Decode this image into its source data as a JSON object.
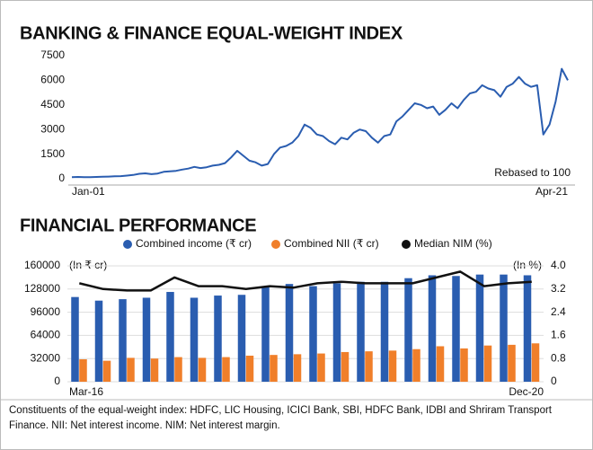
{
  "chart_data": [
    {
      "type": "line",
      "title": "BANKING & FINANCE EQUAL-WEIGHT INDEX",
      "annotation": "Rebased to 100",
      "color": "#2a5db0",
      "categories": [
        "Jan-01",
        null,
        null,
        null,
        null,
        null,
        null,
        null,
        null,
        null,
        null,
        null,
        null,
        null,
        null,
        null,
        null,
        null,
        null,
        null,
        null,
        null,
        null,
        null,
        null,
        null,
        null,
        null,
        null,
        null,
        null,
        null,
        null,
        null,
        null,
        null,
        null,
        null,
        null,
        null,
        null,
        null,
        null,
        null,
        null,
        null,
        null,
        null,
        null,
        null,
        null,
        null,
        null,
        null,
        null,
        null,
        null,
        null,
        null,
        null,
        null,
        null,
        null,
        null,
        null,
        null,
        null,
        null,
        null,
        null,
        null,
        null,
        null,
        null,
        null,
        null,
        null,
        null,
        null,
        null,
        null,
        "Apr-21"
      ],
      "values": [
        100,
        110,
        95,
        100,
        110,
        120,
        130,
        150,
        160,
        190,
        230,
        300,
        330,
        280,
        320,
        420,
        450,
        480,
        560,
        620,
        720,
        650,
        700,
        800,
        850,
        950,
        1300,
        1700,
        1400,
        1100,
        1000,
        800,
        900,
        1500,
        1900,
        2000,
        2200,
        2600,
        3300,
        3100,
        2700,
        2600,
        2300,
        2100,
        2500,
        2400,
        2800,
        3000,
        2900,
        2500,
        2200,
        2600,
        2700,
        3500,
        3800,
        4200,
        4600,
        4500,
        4300,
        4400,
        3900,
        4200,
        4600,
        4300,
        4800,
        5200,
        5300,
        5700,
        5500,
        5400,
        5000,
        5600,
        5800,
        6200,
        5800,
        5600,
        5700,
        2700,
        3300,
        4700,
        6700,
        6000
      ],
      "ylim": [
        0,
        7500
      ],
      "yticks": [
        0,
        1500,
        3000,
        4500,
        6000,
        7500
      ],
      "grid": false
    },
    {
      "type": "bar",
      "title": "FINANCIAL PERFORMANCE",
      "ylabel": "(In ₹ cr)",
      "y2label": "(In %)",
      "categories": [
        "Mar-16",
        null,
        null,
        null,
        null,
        null,
        null,
        null,
        null,
        null,
        null,
        null,
        null,
        null,
        null,
        null,
        null,
        null,
        null,
        "Dec-20"
      ],
      "series": [
        {
          "name": "Combined income (₹ cr)",
          "color": "#2a5db0",
          "type": "bar",
          "values": [
            117000,
            112000,
            114000,
            116000,
            124000,
            116000,
            119000,
            120000,
            131000,
            135000,
            132000,
            136000,
            138000,
            138000,
            143000,
            147000,
            146000,
            148000,
            148000,
            147000
          ]
        },
        {
          "name": "Combined NII  (₹ cr)",
          "color": "#f07f2a",
          "type": "bar",
          "values": [
            31000,
            29000,
            33000,
            32000,
            34000,
            33000,
            34000,
            36000,
            37000,
            38000,
            39000,
            41000,
            42000,
            43000,
            45000,
            49000,
            46000,
            50000,
            51000,
            53000
          ]
        },
        {
          "name": "Median NIM (%)",
          "color": "#111111",
          "type": "line",
          "axis": "y2",
          "values": [
            3.4,
            3.2,
            3.15,
            3.15,
            3.6,
            3.3,
            3.3,
            3.2,
            3.3,
            3.25,
            3.4,
            3.45,
            3.4,
            3.4,
            3.4,
            3.6,
            3.8,
            3.3,
            3.4,
            3.45
          ]
        }
      ],
      "ylim": [
        0,
        160000
      ],
      "yticks": [
        0,
        32000,
        64000,
        96000,
        128000,
        160000
      ],
      "y2lim": [
        0,
        4
      ],
      "y2ticks": [
        0,
        0.8,
        1.6,
        2.4,
        3.2,
        {
          "value": 4,
          "label": "4.0"
        }
      ],
      "grid": true
    }
  ],
  "footnote": "Constituents of the equal-weight index: HDFC, LIC Housing, ICICI Bank, SBI, HDFC Bank, IDBI and Shriram Transport Finance. NII: Net interest income. NIM: Net interest margin."
}
